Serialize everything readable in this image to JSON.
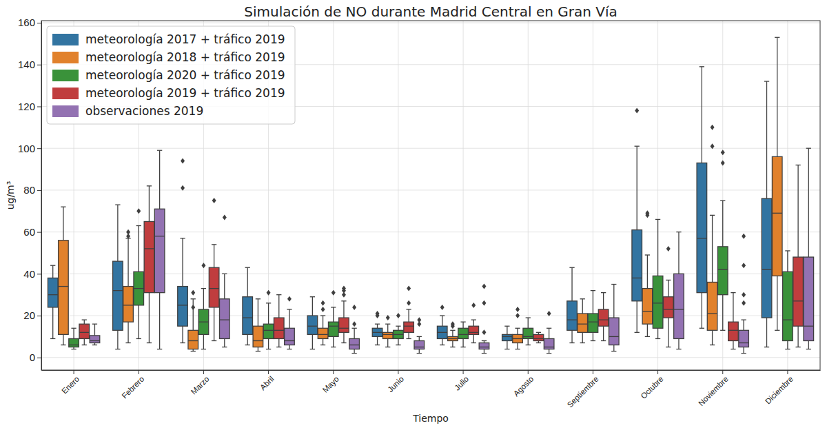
{
  "chart_data": {
    "type": "box",
    "title": "Simulación de NO durante Madrid Central en Gran Vía",
    "x_label": "Tiempo",
    "y_label": "ug/m³",
    "categories": [
      "Enero",
      "Febrero",
      "Marzo",
      "Abril",
      "Mayo",
      "Junio",
      "Julio",
      "Agosto",
      "Septiembre",
      "Octubre",
      "Noviembre",
      "Diciembre"
    ],
    "ylim": [
      -6,
      161
    ],
    "yticks": [
      0,
      20,
      40,
      60,
      80,
      100,
      120,
      140,
      160
    ],
    "grid": true,
    "legend": "upper left",
    "series": [
      {
        "name": "meteorología 2017 + tráfico 2019",
        "color": "#3274a1",
        "min": [
          9,
          4,
          7,
          6,
          4,
          6,
          6,
          4,
          7,
          12,
          14,
          5
        ],
        "q1": [
          24,
          13,
          15,
          11,
          11,
          10,
          9,
          8,
          13,
          27,
          31,
          19
        ],
        "median": [
          30,
          32,
          25,
          19,
          15,
          12,
          12,
          10,
          18,
          38,
          57,
          42
        ],
        "q3": [
          38,
          46,
          34,
          29,
          20,
          14,
          15,
          11,
          27,
          61,
          93,
          76
        ],
        "max": [
          44,
          73,
          57,
          43,
          29,
          16,
          20,
          15,
          43,
          101,
          139,
          132
        ],
        "outliers": [
          [],
          [],
          [
            81,
            94
          ],
          [],
          [],
          [
            20,
            21
          ],
          [
            24
          ],
          [],
          [],
          [
            118
          ],
          [],
          []
        ]
      },
      {
        "name": "meteorología 2018 + tráfico 2019",
        "color": "#e1812c",
        "min": [
          6,
          7,
          3,
          3,
          6,
          5,
          5,
          4,
          7,
          10,
          6,
          13
        ],
        "q1": [
          11,
          17,
          4,
          5,
          9,
          9,
          8,
          7,
          12,
          16,
          13,
          39
        ],
        "median": [
          34,
          25,
          8,
          8,
          11,
          11,
          9,
          9,
          16,
          22,
          21,
          69
        ],
        "q3": [
          56,
          34,
          13,
          15,
          14,
          12,
          10,
          11,
          21,
          33,
          36,
          96
        ],
        "max": [
          72,
          57,
          28,
          28,
          20,
          16,
          13,
          14,
          28,
          49,
          68,
          153
        ],
        "outliers": [
          [],
          [
            58,
            60
          ],
          [
            24,
            31
          ],
          [],
          [
            23,
            26
          ],
          [
            19
          ],
          [
            15,
            16
          ],
          [
            20,
            23
          ],
          [],
          [
            68,
            69
          ],
          [
            101,
            110
          ],
          []
        ]
      },
      {
        "name": "meteorología 2020 + tráfico 2019",
        "color": "#3a923a",
        "min": [
          4,
          9,
          4,
          4,
          5,
          6,
          5,
          6,
          8,
          9,
          13,
          4
        ],
        "q1": [
          5,
          25,
          11,
          9,
          10,
          9,
          9,
          9,
          12,
          14,
          30,
          8
        ],
        "median": [
          6,
          33,
          17,
          13,
          15,
          11,
          11,
          10,
          17,
          26,
          42,
          18
        ],
        "q3": [
          9,
          41,
          23,
          16,
          17,
          13,
          14,
          14,
          21,
          39,
          53,
          41
        ],
        "max": [
          14,
          63,
          33,
          26,
          24,
          15,
          17,
          19,
          32,
          66,
          75,
          51
        ],
        "outliers": [
          [],
          [
            70
          ],
          [
            44
          ],
          [
            31
          ],
          [
            31
          ],
          [
            20
          ],
          [],
          [],
          [],
          [],
          [
            93,
            98
          ],
          []
        ]
      },
      {
        "name": "meteorología 2019 + tráfico 2019",
        "color": "#c03d3e",
        "min": [
          6,
          7,
          8,
          5,
          7,
          9,
          7,
          7,
          8,
          5,
          4,
          5
        ],
        "q1": [
          9,
          31,
          24,
          9,
          12,
          12,
          11,
          8,
          15,
          19,
          8,
          15
        ],
        "median": [
          12,
          52,
          33,
          13,
          14,
          15,
          12,
          9,
          18,
          23,
          13,
          27
        ],
        "q3": [
          16,
          65,
          43,
          19,
          19,
          17,
          15,
          11,
          23,
          29,
          17,
          48
        ],
        "max": [
          18,
          82,
          54,
          30,
          27,
          23,
          18,
          12,
          31,
          37,
          31,
          92
        ],
        "outliers": [
          [],
          [],
          [
            75
          ],
          [],
          [
            30,
            32,
            33
          ],
          [
            26,
            33
          ],
          [
            25
          ],
          [],
          [],
          [
            52
          ],
          [],
          []
        ]
      },
      {
        "name": "observaciones 2019",
        "color": "#9372b2",
        "min": [
          6,
          4,
          5,
          4,
          2,
          2,
          2,
          2,
          3,
          4,
          2,
          4
        ],
        "q1": [
          7,
          31,
          9,
          6,
          4,
          4,
          4,
          4,
          6,
          9,
          5,
          8
        ],
        "median": [
          8,
          58,
          18,
          8,
          6,
          5,
          5,
          5,
          10,
          23,
          7,
          15
        ],
        "q3": [
          10.5,
          71,
          28,
          14,
          9,
          8,
          7,
          9,
          19,
          40,
          13,
          48
        ],
        "max": [
          16,
          99,
          40,
          23,
          14,
          10,
          8,
          14,
          35,
          60,
          18,
          100
        ],
        "outliers": [
          [],
          [],
          [
            67
          ],
          [
            28
          ],
          [
            16,
            24
          ],
          [
            16,
            18
          ],
          [
            12,
            26,
            34
          ],
          [
            21
          ],
          [],
          [],
          [
            26,
            30,
            44,
            58
          ],
          []
        ]
      }
    ]
  }
}
